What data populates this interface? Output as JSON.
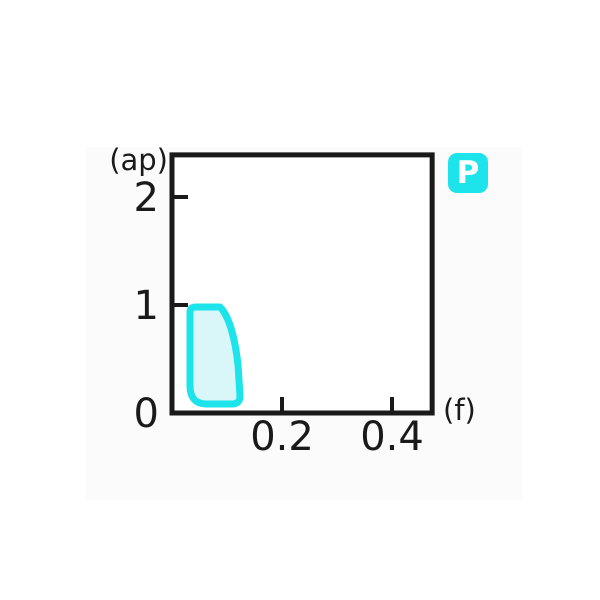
{
  "chart_data": {
    "type": "area",
    "title": "",
    "xlabel": "(f)",
    "ylabel": "(ap)",
    "xlim": [
      0,
      0.473
    ],
    "ylim": [
      0,
      2.39
    ],
    "grid": false,
    "x_ticks": [
      {
        "value": 0.2,
        "label": "0.2",
        "mark": true
      },
      {
        "value": 0.4,
        "label": "0.4",
        "mark": true
      }
    ],
    "y_ticks": [
      {
        "value": 0,
        "label": "0",
        "mark": false
      },
      {
        "value": 1,
        "label": "1",
        "mark": true
      },
      {
        "value": 2,
        "label": "2",
        "mark": true
      }
    ],
    "legend": {
      "label": "P",
      "position": "outside-top-right"
    },
    "series": [
      {
        "name": "P",
        "kind": "region",
        "fill": "#d9f7f9",
        "stroke": "#1de3ea",
        "approx_x_range": [
          0.033,
          0.124
        ],
        "approx_y_range": [
          0.08,
          0.98
        ],
        "outline_path": [
          {
            "c": "M",
            "p": [
              [
                0.0873,
                0.9815
              ]
            ]
          },
          {
            "c": "C",
            "p": [
              [
                0.1036,
                0.8981
              ],
              [
                0.1145,
                0.6944
              ],
              [
                0.12,
                0.4444
              ]
            ]
          },
          {
            "c": "L",
            "p": [
              [
                0.1236,
                0.1574
              ]
            ]
          },
          {
            "c": "Q",
            "p": [
              [
                0.1236,
                0.0833
              ],
              [
                0.1091,
                0.0833
              ]
            ]
          },
          {
            "c": "L",
            "p": [
              [
                0.0636,
                0.0833
              ]
            ]
          },
          {
            "c": "Q",
            "p": [
              [
                0.0327,
                0.0833
              ],
              [
                0.0327,
                0.25
              ]
            ]
          },
          {
            "c": "L",
            "p": [
              [
                0.0327,
                0.9352
              ]
            ]
          },
          {
            "c": "Q",
            "p": [
              [
                0.0327,
                0.9815
              ],
              [
                0.0436,
                0.9815
              ]
            ]
          },
          {
            "c": "Z",
            "p": []
          }
        ]
      }
    ],
    "colors": {
      "axis": "#1a1a1a",
      "accent_cyan": "#1de3ea",
      "region_fill": "#d9f7f9",
      "label_text": "#1a1a1a",
      "legend_text": "#ffffff",
      "plot_background": "#ffffff"
    }
  }
}
